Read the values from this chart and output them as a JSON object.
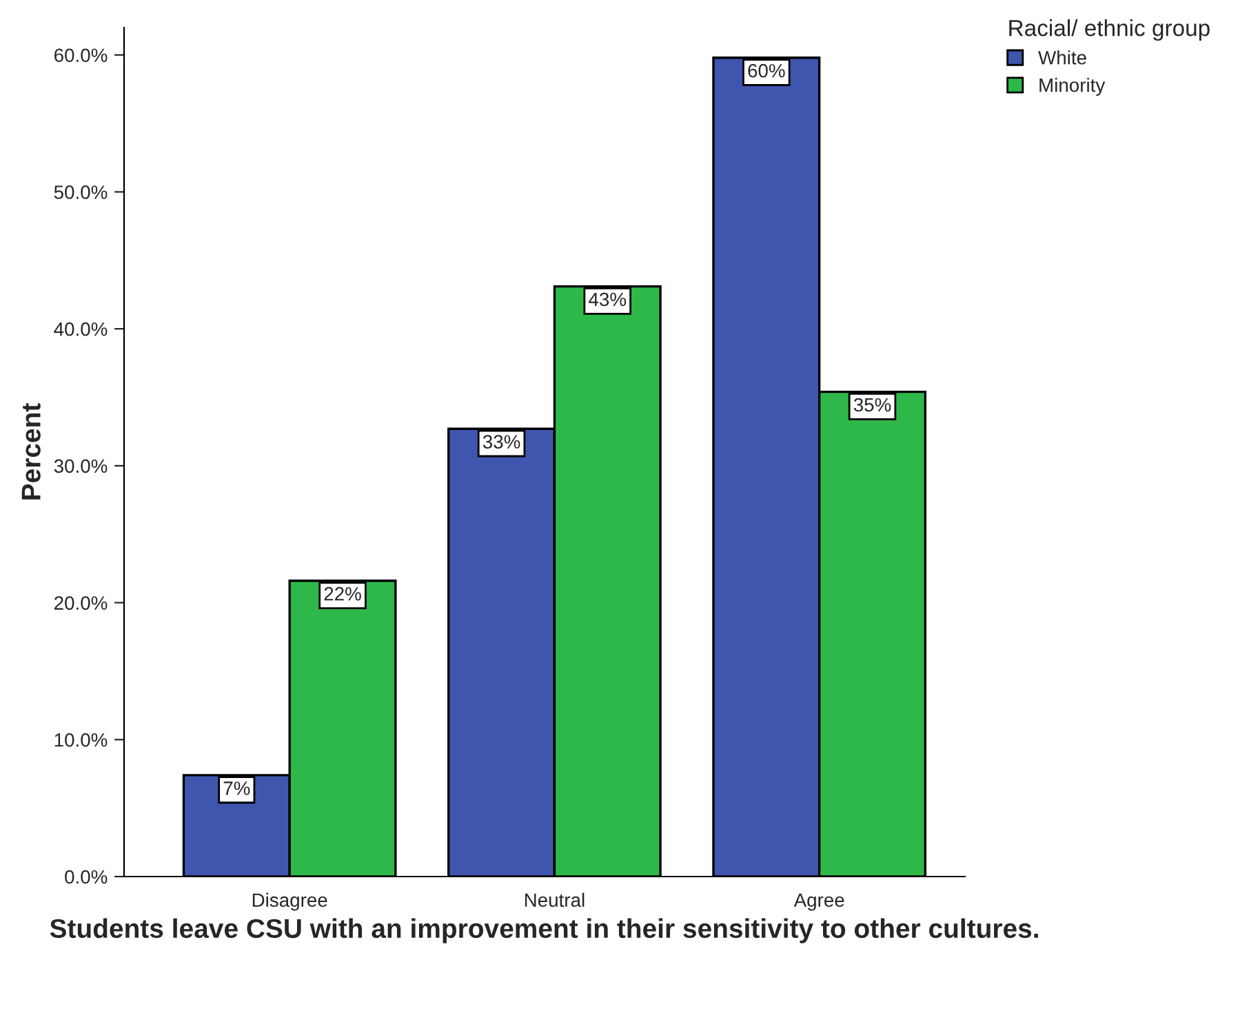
{
  "chart_data": {
    "type": "bar",
    "xlabel": "Students leave CSU with an improvement in their sensitivity to other cultures.",
    "ylabel": "Percent",
    "legend_title": "Racial/ ethnic group",
    "categories": [
      "Disagree",
      "Neutral",
      "Agree"
    ],
    "series": [
      {
        "name": "White",
        "color": "#3f56ae",
        "values": [
          7.4,
          32.7,
          59.8
        ],
        "value_labels": [
          "7%",
          "33%",
          "60%"
        ]
      },
      {
        "name": "Minority",
        "color": "#2fb84a",
        "values": [
          21.6,
          43.1,
          35.4
        ],
        "value_labels": [
          "22%",
          "43%",
          "35%"
        ]
      }
    ],
    "ylim": [
      0,
      62
    ],
    "yticks": [
      {
        "value": 0,
        "label": "0.0%"
      },
      {
        "value": 10,
        "label": "10.0%"
      },
      {
        "value": 20,
        "label": "20.0%"
      },
      {
        "value": 30,
        "label": "30.0%"
      },
      {
        "value": 40,
        "label": "40.0%"
      },
      {
        "value": 50,
        "label": "50.0%"
      },
      {
        "value": 60,
        "label": "60.0%"
      }
    ],
    "grid": false,
    "legend": "top right"
  }
}
